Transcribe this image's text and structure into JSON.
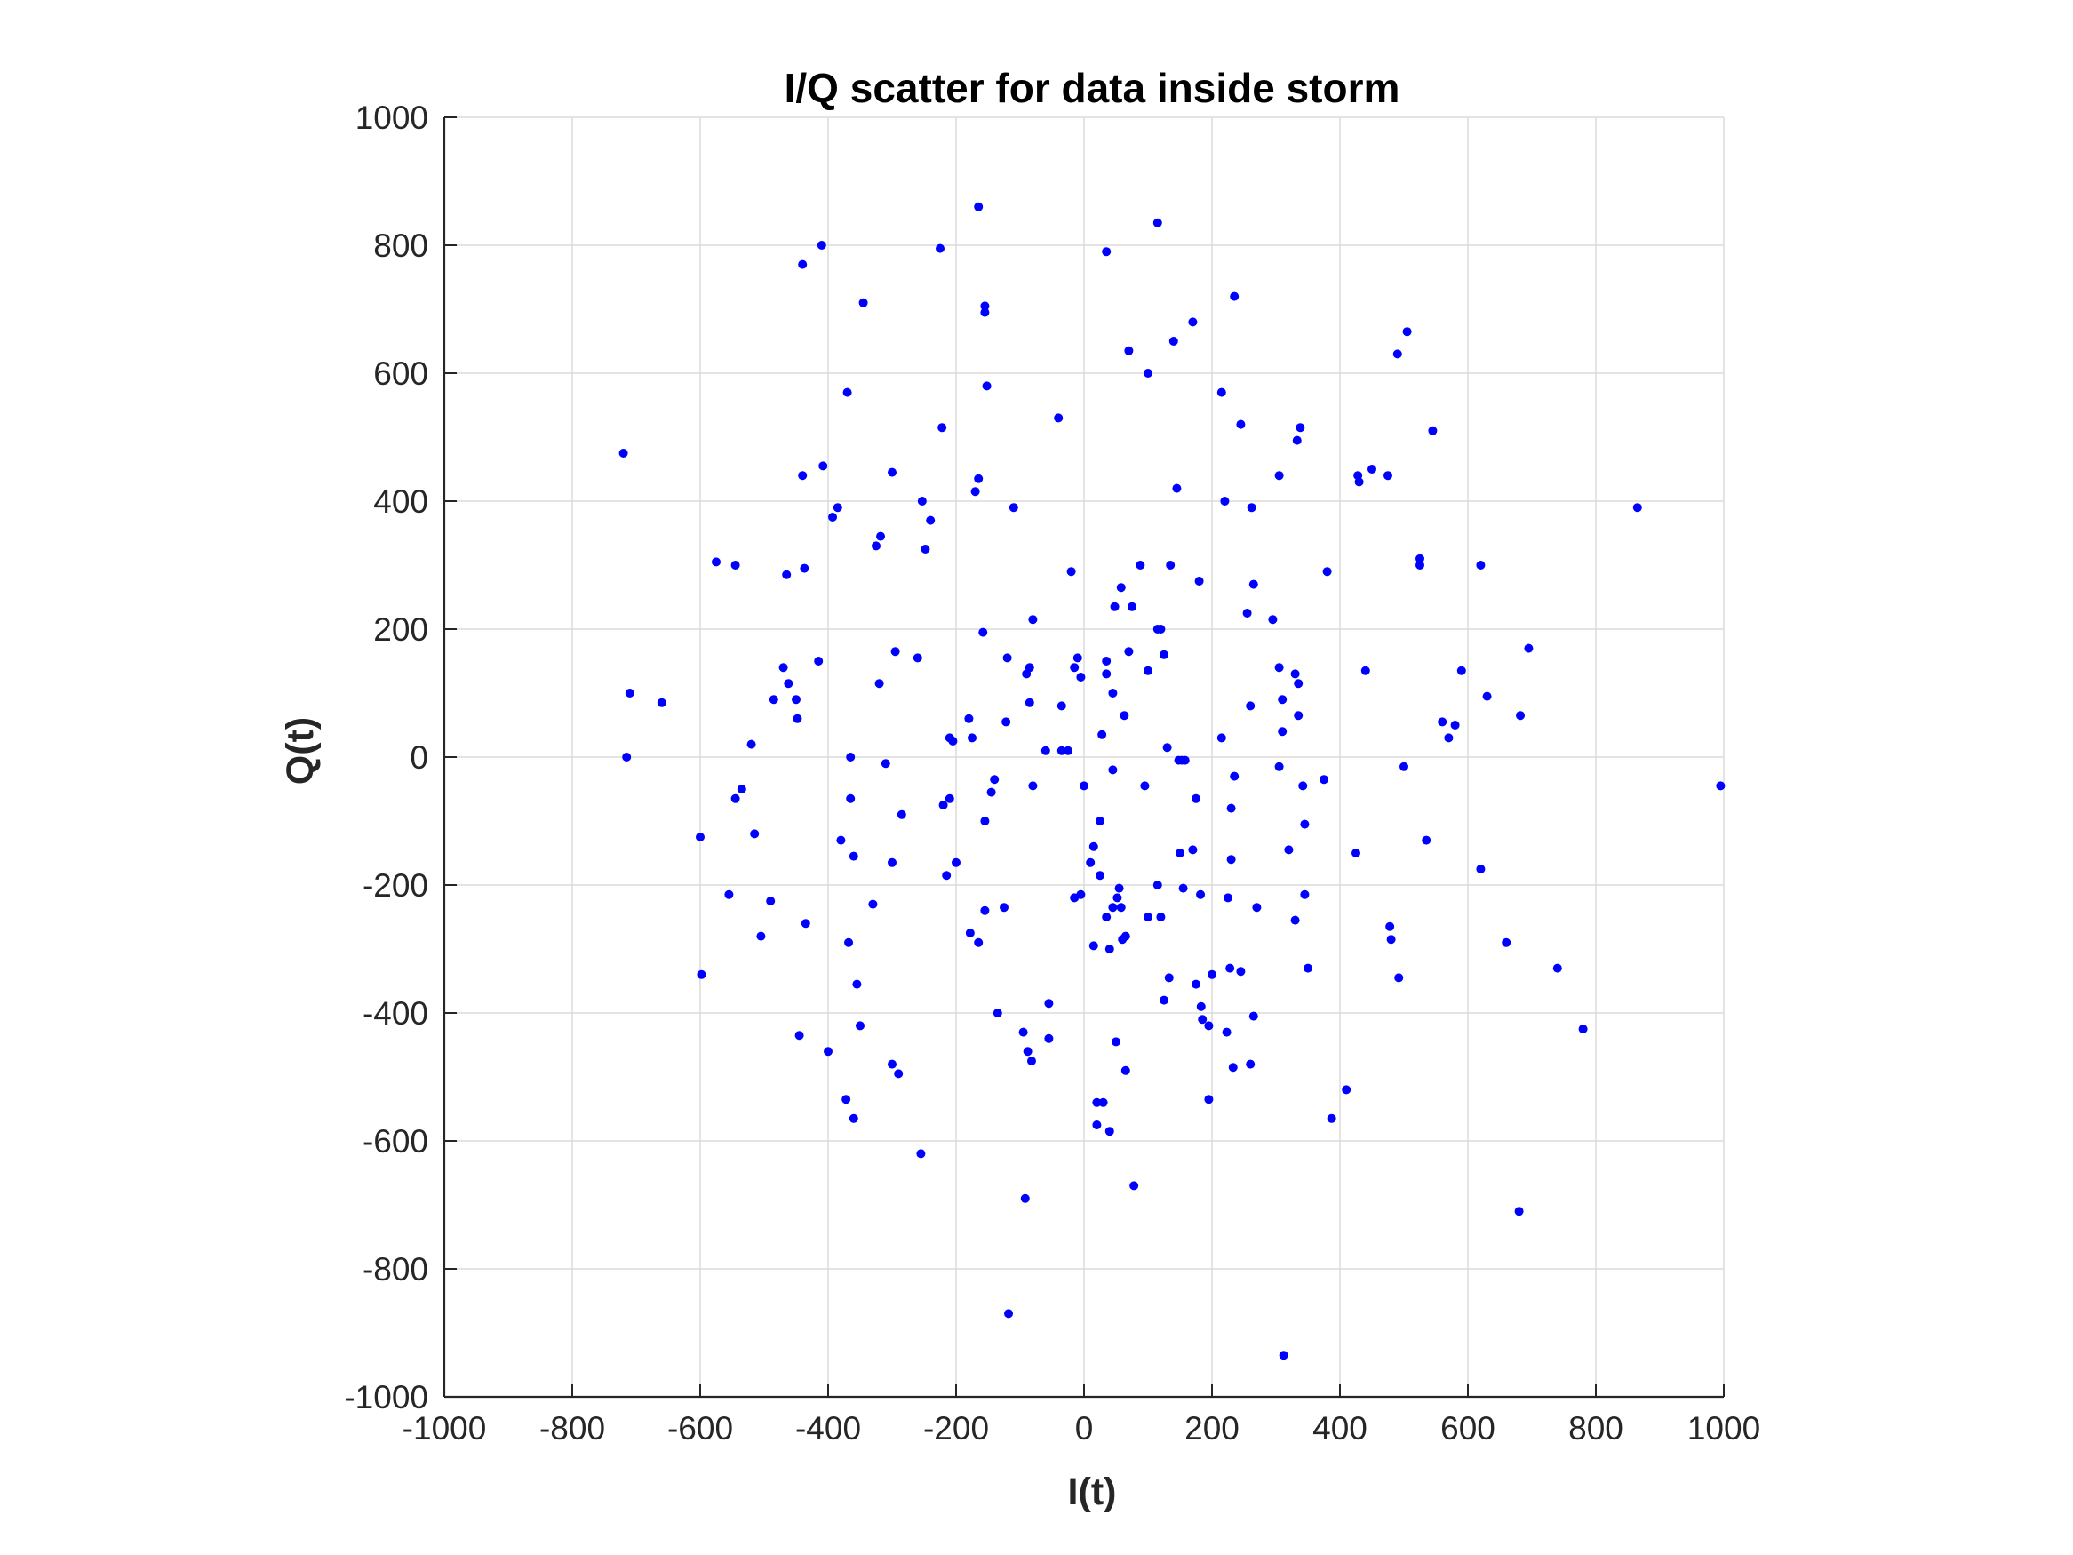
{
  "chart_data": {
    "type": "scatter",
    "title": "I/Q scatter for data inside storm",
    "xlabel": "I(t)",
    "ylabel": "Q(t)",
    "xlim": [
      -1000,
      1000
    ],
    "ylim": [
      -1000,
      1000
    ],
    "xticks": [
      -1000,
      -800,
      -600,
      -400,
      -200,
      0,
      200,
      400,
      600,
      800,
      1000
    ],
    "yticks": [
      -1000,
      -800,
      -600,
      -400,
      -200,
      0,
      200,
      400,
      600,
      800,
      1000
    ],
    "grid": true,
    "marker_color": "#0000ff",
    "series": [
      {
        "points": [
          [
            -720,
            475
          ],
          [
            -715,
            0
          ],
          [
            -710,
            100
          ],
          [
            -660,
            85
          ],
          [
            -600,
            -125
          ],
          [
            -598,
            -340
          ],
          [
            -575,
            305
          ],
          [
            -555,
            -215
          ],
          [
            -545,
            300
          ],
          [
            -545,
            -65
          ],
          [
            -535,
            -50
          ],
          [
            -520,
            20
          ],
          [
            -515,
            -120
          ],
          [
            -505,
            -280
          ],
          [
            -490,
            -225
          ],
          [
            -485,
            90
          ],
          [
            -470,
            140
          ],
          [
            -465,
            285
          ],
          [
            -462,
            115
          ],
          [
            -450,
            90
          ],
          [
            -448,
            60
          ],
          [
            -445,
            -435
          ],
          [
            -440,
            440
          ],
          [
            -440,
            770
          ],
          [
            -437,
            295
          ],
          [
            -435,
            -260
          ],
          [
            -415,
            150
          ],
          [
            -410,
            800
          ],
          [
            -408,
            455
          ],
          [
            -400,
            -460
          ],
          [
            -393,
            375
          ],
          [
            -385,
            390
          ],
          [
            -380,
            -130
          ],
          [
            -372,
            -535
          ],
          [
            -370,
            570
          ],
          [
            -368,
            -290
          ],
          [
            -365,
            -65
          ],
          [
            -365,
            0
          ],
          [
            -360,
            -155
          ],
          [
            -360,
            -565
          ],
          [
            -355,
            -355
          ],
          [
            -350,
            -420
          ],
          [
            -345,
            710
          ],
          [
            -330,
            -230
          ],
          [
            -325,
            330
          ],
          [
            -320,
            115
          ],
          [
            -318,
            345
          ],
          [
            -310,
            -10
          ],
          [
            -300,
            445
          ],
          [
            -300,
            -480
          ],
          [
            -300,
            -165
          ],
          [
            -295,
            165
          ],
          [
            -290,
            -495
          ],
          [
            -285,
            -90
          ],
          [
            -260,
            155
          ],
          [
            -255,
            -620
          ],
          [
            -253,
            400
          ],
          [
            -248,
            325
          ],
          [
            -240,
            370
          ],
          [
            -225,
            795
          ],
          [
            -222,
            515
          ],
          [
            -220,
            -75
          ],
          [
            -215,
            -185
          ],
          [
            -210,
            30
          ],
          [
            -210,
            -65
          ],
          [
            -205,
            25
          ],
          [
            -200,
            -165
          ],
          [
            -180,
            60
          ],
          [
            -178,
            -275
          ],
          [
            -175,
            30
          ],
          [
            -170,
            415
          ],
          [
            -165,
            860
          ],
          [
            -165,
            435
          ],
          [
            -165,
            -290
          ],
          [
            -158,
            195
          ],
          [
            -155,
            705
          ],
          [
            -155,
            695
          ],
          [
            -155,
            -240
          ],
          [
            -155,
            -100
          ],
          [
            -152,
            580
          ],
          [
            -145,
            -55
          ],
          [
            -140,
            -35
          ],
          [
            -135,
            -400
          ],
          [
            -125,
            -235
          ],
          [
            -122,
            55
          ],
          [
            -120,
            155
          ],
          [
            -118,
            -870
          ],
          [
            -110,
            390
          ],
          [
            -95,
            -430
          ],
          [
            -92,
            -690
          ],
          [
            -90,
            130
          ],
          [
            -88,
            -460
          ],
          [
            -85,
            140
          ],
          [
            -85,
            85
          ],
          [
            -82,
            -475
          ],
          [
            -80,
            215
          ],
          [
            -80,
            -45
          ],
          [
            -60,
            10
          ],
          [
            -55,
            -385
          ],
          [
            -55,
            -440
          ],
          [
            -40,
            530
          ],
          [
            -35,
            10
          ],
          [
            -35,
            80
          ],
          [
            -25,
            10
          ],
          [
            -20,
            290
          ],
          [
            -15,
            140
          ],
          [
            -15,
            -220
          ],
          [
            -10,
            155
          ],
          [
            -5,
            125
          ],
          [
            -5,
            -215
          ],
          [
            0,
            -45
          ],
          [
            10,
            -165
          ],
          [
            15,
            -295
          ],
          [
            15,
            -140
          ],
          [
            20,
            -575
          ],
          [
            20,
            -540
          ],
          [
            25,
            -185
          ],
          [
            25,
            -100
          ],
          [
            28,
            35
          ],
          [
            30,
            -540
          ],
          [
            35,
            790
          ],
          [
            35,
            150
          ],
          [
            35,
            -250
          ],
          [
            35,
            130
          ],
          [
            40,
            -300
          ],
          [
            40,
            -585
          ],
          [
            45,
            -20
          ],
          [
            45,
            -235
          ],
          [
            45,
            100
          ],
          [
            48,
            235
          ],
          [
            50,
            -445
          ],
          [
            52,
            -220
          ],
          [
            55,
            -205
          ],
          [
            58,
            265
          ],
          [
            58,
            -235
          ],
          [
            60,
            -285
          ],
          [
            63,
            65
          ],
          [
            65,
            -280
          ],
          [
            65,
            -490
          ],
          [
            70,
            635
          ],
          [
            70,
            165
          ],
          [
            75,
            235
          ],
          [
            78,
            -670
          ],
          [
            88,
            300
          ],
          [
            95,
            -45
          ],
          [
            100,
            600
          ],
          [
            100,
            -250
          ],
          [
            100,
            135
          ],
          [
            115,
            835
          ],
          [
            115,
            200
          ],
          [
            115,
            -200
          ],
          [
            120,
            -250
          ],
          [
            120,
            200
          ],
          [
            125,
            160
          ],
          [
            125,
            -380
          ],
          [
            130,
            15
          ],
          [
            133,
            -345
          ],
          [
            135,
            300
          ],
          [
            140,
            650
          ],
          [
            145,
            420
          ],
          [
            148,
            -5
          ],
          [
            150,
            -150
          ],
          [
            153,
            -5
          ],
          [
            155,
            -205
          ],
          [
            158,
            -5
          ],
          [
            170,
            680
          ],
          [
            170,
            -145
          ],
          [
            175,
            -65
          ],
          [
            175,
            -355
          ],
          [
            180,
            275
          ],
          [
            182,
            -215
          ],
          [
            183,
            -390
          ],
          [
            185,
            -410
          ],
          [
            195,
            -420
          ],
          [
            195,
            -535
          ],
          [
            200,
            -340
          ],
          [
            215,
            570
          ],
          [
            215,
            30
          ],
          [
            220,
            400
          ],
          [
            223,
            -430
          ],
          [
            225,
            -220
          ],
          [
            228,
            -330
          ],
          [
            230,
            -80
          ],
          [
            230,
            -160
          ],
          [
            233,
            -485
          ],
          [
            235,
            720
          ],
          [
            235,
            -30
          ],
          [
            245,
            -335
          ],
          [
            245,
            520
          ],
          [
            255,
            225
          ],
          [
            260,
            80
          ],
          [
            260,
            -480
          ],
          [
            262,
            390
          ],
          [
            265,
            -405
          ],
          [
            265,
            270
          ],
          [
            270,
            -235
          ],
          [
            295,
            215
          ],
          [
            305,
            140
          ],
          [
            305,
            440
          ],
          [
            305,
            -15
          ],
          [
            310,
            90
          ],
          [
            310,
            40
          ],
          [
            312,
            -935
          ],
          [
            320,
            -145
          ],
          [
            330,
            130
          ],
          [
            330,
            -255
          ],
          [
            333,
            495
          ],
          [
            335,
            115
          ],
          [
            335,
            65
          ],
          [
            338,
            515
          ],
          [
            342,
            -45
          ],
          [
            345,
            -105
          ],
          [
            345,
            -215
          ],
          [
            350,
            -330
          ],
          [
            375,
            -35
          ],
          [
            380,
            290
          ],
          [
            387,
            -565
          ],
          [
            410,
            -520
          ],
          [
            425,
            -150
          ],
          [
            428,
            440
          ],
          [
            430,
            430
          ],
          [
            440,
            135
          ],
          [
            450,
            450
          ],
          [
            475,
            440
          ],
          [
            478,
            -265
          ],
          [
            480,
            -285
          ],
          [
            490,
            630
          ],
          [
            492,
            -345
          ],
          [
            500,
            -15
          ],
          [
            505,
            665
          ],
          [
            525,
            310
          ],
          [
            525,
            300
          ],
          [
            535,
            -130
          ],
          [
            545,
            510
          ],
          [
            560,
            55
          ],
          [
            570,
            30
          ],
          [
            580,
            50
          ],
          [
            590,
            135
          ],
          [
            620,
            300
          ],
          [
            620,
            -175
          ],
          [
            630,
            95
          ],
          [
            660,
            -290
          ],
          [
            680,
            -710
          ],
          [
            682,
            65
          ],
          [
            695,
            170
          ],
          [
            740,
            -330
          ],
          [
            780,
            -425
          ],
          [
            865,
            390
          ],
          [
            995,
            -45
          ]
        ]
      }
    ]
  }
}
